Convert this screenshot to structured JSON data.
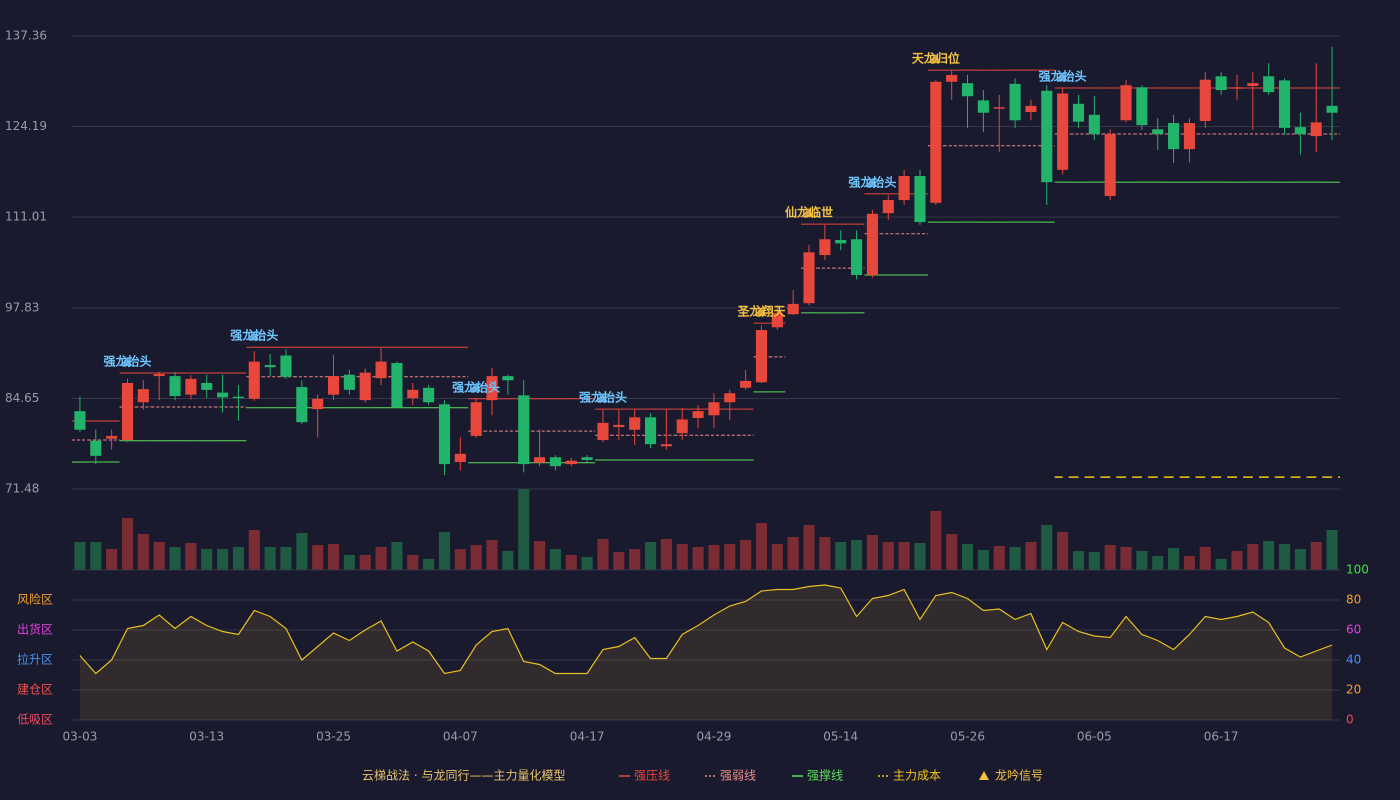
{
  "chart_data": [
    {
      "type": "candlestick",
      "categories": [
        "03-03",
        null,
        null,
        null,
        null,
        null,
        null,
        null,
        "03-13",
        null,
        null,
        null,
        null,
        null,
        null,
        null,
        "03-25",
        null,
        null,
        null,
        null,
        null,
        null,
        null,
        "04-07",
        null,
        null,
        null,
        null,
        null,
        null,
        null,
        "04-17",
        null,
        null,
        null,
        null,
        null,
        null,
        null,
        "04-29",
        null,
        null,
        null,
        null,
        null,
        null,
        null,
        "05-14",
        null,
        null,
        null,
        null,
        null,
        null,
        null,
        "05-26",
        null,
        null,
        null,
        null,
        null,
        null,
        null,
        "06-05",
        null,
        null,
        null,
        null,
        null,
        null,
        null,
        "06-17",
        null,
        null,
        null,
        null,
        null,
        null,
        null
      ],
      "open": [
        82.8,
        78.5,
        78.8,
        78.6,
        84.1,
        87.9,
        87.9,
        85.2,
        86.9,
        85.5,
        84.9,
        84.6,
        89.5,
        90.9,
        86.3,
        83.1,
        85.2,
        88.1,
        84.4,
        87.6,
        89.8,
        84.7,
        86.2,
        83.8,
        75.4,
        79.2,
        84.4,
        87.9,
        85.1,
        75.3,
        76.1,
        75.1,
        76.1,
        78.6,
        80.5,
        80.1,
        81.9,
        77.7,
        79.6,
        81.8,
        82.2,
        84.1,
        86.2,
        87.0,
        95.0,
        96.9,
        98.5,
        105.5,
        107.7,
        107.8,
        102.6,
        111.6,
        113.5,
        117.0,
        113.1,
        130.7,
        130.5,
        128.0,
        126.8,
        130.4,
        126.3,
        129.4,
        117.9,
        127.5,
        125.9,
        114.1,
        125.1,
        129.9,
        123.8,
        124.7,
        120.9,
        125.0,
        131.5,
        129.7,
        130.1,
        131.5,
        130.9,
        124.1,
        122.8,
        127.2
      ],
      "high": [
        84.9,
        80.1,
        80.1,
        87.5,
        87.3,
        88.5,
        88.5,
        88.0,
        88.1,
        88.1,
        86.6,
        91.5,
        91.1,
        91.8,
        87.3,
        85.2,
        91.0,
        88.8,
        89.0,
        92.0,
        90.0,
        86.9,
        86.6,
        84.4,
        79.0,
        84.7,
        89.1,
        88.1,
        87.3,
        80.1,
        76.4,
        76.0,
        76.4,
        83.0,
        83.0,
        83.0,
        82.5,
        83.0,
        83.3,
        83.7,
        85.4,
        85.9,
        88.8,
        95.3,
        98.2,
        100.4,
        107.0,
        109.9,
        109.1,
        109.1,
        112.1,
        114.2,
        117.9,
        117.9,
        131.0,
        132.4,
        131.7,
        129.5,
        128.8,
        131.2,
        128.1,
        130.2,
        129.8,
        128.8,
        128.6,
        123.8,
        131.0,
        130.2,
        125.4,
        125.9,
        125.4,
        132.1,
        132.1,
        131.7,
        132.1,
        133.4,
        131.2,
        126.2,
        133.4,
        135.8
      ],
      "low": [
        79.8,
        75.1,
        77.2,
        78.3,
        83.0,
        84.4,
        84.4,
        84.5,
        84.7,
        82.6,
        81.4,
        84.3,
        87.9,
        87.5,
        80.9,
        79.0,
        84.4,
        85.2,
        84.0,
        86.6,
        83.2,
        83.7,
        83.7,
        73.5,
        74.2,
        78.9,
        82.2,
        85.2,
        73.9,
        74.8,
        74.2,
        74.8,
        75.4,
        78.3,
        78.6,
        77.9,
        77.4,
        77.2,
        78.6,
        80.3,
        80.3,
        81.5,
        85.9,
        86.9,
        94.6,
        96.8,
        98.2,
        104.8,
        106.2,
        102.0,
        102.2,
        110.6,
        112.8,
        109.9,
        112.8,
        128.1,
        124.0,
        123.4,
        120.5,
        124.0,
        125.1,
        112.8,
        117.2,
        124.0,
        122.2,
        113.5,
        124.8,
        123.7,
        120.8,
        118.9,
        119.0,
        124.0,
        128.8,
        128.1,
        123.7,
        128.8,
        123.0,
        120.1,
        120.5,
        122.2
      ],
      "close": [
        80.1,
        76.3,
        79.2,
        86.9,
        86.0,
        88.2,
        85.0,
        87.5,
        85.9,
        84.8,
        84.7,
        90.0,
        89.2,
        87.8,
        81.2,
        84.6,
        87.9,
        85.9,
        88.4,
        90.0,
        83.4,
        85.9,
        84.1,
        75.1,
        76.6,
        84.1,
        87.9,
        87.3,
        75.1,
        76.1,
        74.8,
        75.6,
        75.7,
        81.1,
        80.8,
        81.9,
        78.0,
        78.0,
        81.6,
        82.8,
        84.1,
        85.4,
        87.2,
        94.6,
        97.1,
        98.4,
        105.9,
        107.8,
        107.2,
        102.6,
        111.5,
        113.5,
        117.0,
        110.3,
        130.7,
        131.7,
        128.6,
        126.2,
        127.0,
        125.1,
        127.2,
        116.1,
        129.0,
        124.9,
        123.1,
        123.1,
        130.2,
        124.4,
        123.1,
        120.9,
        124.7,
        131.0,
        129.5,
        129.9,
        130.5,
        129.2,
        124.0,
        123.1,
        124.8,
        126.2
      ],
      "up_color": "#e8473c",
      "down_color": "#22b46a",
      "ylim": [
        71.48,
        137.36
      ],
      "yticks": [
        71.48,
        84.65,
        97.83,
        111.01,
        124.19,
        137.36
      ],
      "grid": true,
      "signals": [
        null,
        null,
        null,
        {
          "label": "强龙抬头",
          "color": "#6ec6ff"
        },
        null,
        null,
        null,
        null,
        null,
        null,
        null,
        {
          "label": "强龙抬头",
          "color": "#6ec6ff"
        },
        null,
        null,
        null,
        null,
        null,
        null,
        null,
        null,
        null,
        null,
        null,
        null,
        null,
        {
          "label": "强龙抬头",
          "color": "#6ec6ff"
        },
        null,
        null,
        null,
        null,
        null,
        null,
        null,
        {
          "label": "强龙抬头",
          "color": "#6ec6ff"
        },
        null,
        null,
        null,
        null,
        null,
        null,
        null,
        null,
        null,
        {
          "label": "圣龙翔天",
          "color": "#f5c242"
        },
        null,
        null,
        {
          "label": "仙龙临世",
          "color": "#f5c242"
        },
        null,
        null,
        null,
        {
          "label": "强龙抬头",
          "color": "#6ec6ff"
        },
        null,
        null,
        null,
        {
          "label": "天龙归位",
          "color": "#f5c242"
        },
        null,
        null,
        null,
        null,
        null,
        null,
        null,
        {
          "label": "强龙抬头",
          "color": "#6ec6ff"
        },
        null,
        null,
        null,
        null,
        null,
        null,
        null,
        null,
        null,
        null,
        null,
        null,
        null,
        null,
        null,
        null,
        null
      ],
      "levels": [
        {
          "name": "强压线",
          "color": "#e8473c",
          "dashed": false,
          "values": [
            81.37,
            81.37,
            81.37,
            88.35,
            88.35,
            88.35,
            88.35,
            88.35,
            88.35,
            88.35,
            88.35,
            92.1,
            92.1,
            92.1,
            92.1,
            92.1,
            92.1,
            92.1,
            92.1,
            92.1,
            92.1,
            92.1,
            92.1,
            92.1,
            92.1,
            84.6,
            84.6,
            84.6,
            84.6,
            84.6,
            84.6,
            84.6,
            84.6,
            83.1,
            83.1,
            83.1,
            83.1,
            83.1,
            83.1,
            83.1,
            83.1,
            83.1,
            83.1,
            95.6,
            95.6,
            null,
            110.0,
            110.0,
            110.0,
            110.0,
            114.4,
            114.4,
            114.4,
            114.4,
            132.4,
            132.4,
            132.4,
            132.4,
            132.4,
            132.4,
            132.4,
            132.4,
            129.8,
            129.8,
            129.8,
            129.8,
            129.8,
            129.8,
            129.8,
            129.8,
            129.8,
            129.8,
            129.8,
            129.8,
            129.8,
            129.8,
            129.8,
            129.8,
            129.8,
            129.8
          ]
        },
        {
          "name": "强弱线",
          "color": "#f08a8a",
          "dashed": true,
          "values": [
            78.6,
            78.6,
            78.6,
            83.4,
            83.4,
            83.4,
            83.4,
            83.4,
            83.4,
            83.4,
            83.4,
            87.8,
            87.8,
            87.8,
            87.8,
            87.8,
            87.8,
            87.8,
            87.8,
            87.8,
            87.8,
            87.8,
            87.8,
            87.8,
            87.8,
            79.9,
            79.9,
            79.9,
            79.9,
            79.9,
            79.9,
            79.9,
            79.9,
            79.3,
            79.3,
            79.3,
            79.3,
            79.3,
            79.3,
            79.3,
            79.3,
            79.3,
            79.3,
            90.7,
            90.7,
            null,
            103.6,
            103.6,
            103.6,
            103.6,
            108.6,
            108.6,
            108.6,
            108.6,
            121.4,
            121.4,
            121.4,
            121.4,
            121.4,
            121.4,
            121.4,
            121.4,
            123.1,
            123.1,
            123.1,
            123.1,
            123.1,
            123.1,
            123.1,
            123.1,
            123.1,
            123.1,
            123.1,
            123.1,
            123.1,
            123.1,
            123.1,
            123.1,
            123.1,
            123.1
          ]
        },
        {
          "name": "强撑线",
          "color": "#5be05b",
          "dashed": false,
          "values": [
            75.4,
            75.4,
            75.4,
            78.5,
            78.5,
            78.5,
            78.5,
            78.5,
            78.5,
            78.5,
            78.5,
            83.3,
            83.3,
            83.3,
            83.3,
            83.3,
            83.3,
            83.3,
            83.3,
            83.3,
            83.3,
            83.3,
            83.3,
            83.3,
            83.3,
            75.3,
            75.3,
            75.3,
            75.3,
            75.3,
            75.3,
            75.3,
            75.3,
            75.7,
            75.7,
            75.7,
            75.7,
            75.7,
            75.7,
            75.7,
            75.7,
            75.7,
            75.7,
            85.6,
            85.6,
            null,
            97.1,
            97.1,
            97.1,
            97.1,
            102.6,
            102.6,
            102.6,
            102.6,
            110.3,
            110.3,
            110.3,
            110.3,
            110.3,
            110.3,
            110.3,
            110.3,
            116.1,
            116.1,
            116.1,
            116.1,
            116.1,
            116.1,
            116.1,
            116.1,
            116.1,
            116.1,
            116.1,
            116.1,
            116.1,
            116.1,
            116.1,
            116.1,
            116.1,
            116.1
          ]
        },
        {
          "name": "主力成本",
          "color": "#f5c518",
          "dashed": true,
          "values": [
            null,
            null,
            null,
            null,
            null,
            null,
            null,
            null,
            null,
            null,
            null,
            null,
            null,
            null,
            null,
            null,
            null,
            null,
            null,
            null,
            null,
            null,
            null,
            null,
            null,
            null,
            null,
            null,
            null,
            null,
            null,
            null,
            null,
            null,
            null,
            null,
            null,
            null,
            null,
            null,
            null,
            null,
            null,
            null,
            null,
            null,
            null,
            null,
            null,
            null,
            null,
            null,
            null,
            null,
            null,
            null,
            null,
            null,
            null,
            null,
            null,
            null,
            73.2,
            73.2,
            73.2,
            73.2,
            73.2,
            73.2,
            73.2,
            73.2,
            73.2,
            73.2,
            73.2,
            73.2,
            73.2,
            73.2,
            73.2,
            73.2,
            73.2,
            73.2
          ]
        }
      ],
      "legend_title": "云梯战法 · 与龙同行——主力量化模型",
      "signal_legend": "龙吟信号",
      "signal_legend_color": "#f5c242"
    },
    {
      "type": "volume",
      "values": [
        28,
        28,
        21,
        52,
        36,
        28,
        23,
        27,
        21,
        21,
        23,
        40,
        23,
        23,
        37,
        25,
        26,
        15,
        15,
        23,
        28,
        15,
        11,
        38,
        21,
        25,
        30,
        19,
        81,
        29,
        21,
        15,
        13,
        31,
        18,
        21,
        28,
        31,
        26,
        23,
        25,
        26,
        30,
        47,
        26,
        33,
        45,
        33,
        28,
        30,
        35,
        28,
        28,
        27,
        59,
        36,
        26,
        20,
        24,
        23,
        28,
        45,
        38,
        19,
        18,
        25,
        23,
        19,
        14,
        22,
        14,
        23,
        11,
        19,
        26,
        29,
        26,
        21,
        28,
        40
      ],
      "up_color": "#7a2c34",
      "down_color": "#1f5a42"
    },
    {
      "type": "line",
      "values": [
        43,
        31,
        40,
        61,
        63,
        70,
        61,
        69,
        63,
        59,
        57,
        73,
        69,
        61,
        40,
        49,
        58,
        53,
        60,
        66,
        46,
        52,
        46,
        31,
        33,
        50,
        59,
        61,
        39,
        37,
        31,
        31,
        31,
        47,
        49,
        55,
        41,
        41,
        57,
        63,
        70,
        76,
        79,
        86,
        87,
        87,
        89,
        90,
        88,
        69,
        81,
        83,
        87,
        67,
        83,
        85,
        81,
        73,
        74,
        67,
        71,
        47,
        65,
        59,
        56,
        55,
        69,
        57,
        53,
        47,
        57,
        69,
        67,
        69,
        72,
        65,
        48,
        42,
        46,
        50
      ],
      "color": "#e8c020",
      "ylim": [
        0,
        100
      ],
      "yticks": [
        0,
        20,
        40,
        60,
        80,
        100
      ],
      "ytick_colors": [
        "#f04848",
        "#f0a030",
        "#4a90f0",
        "#e040e0",
        "#f0a030",
        "#40e040"
      ],
      "zones": [
        {
          "label": "低吸区",
          "value": 0,
          "color": "#f04860"
        },
        {
          "label": "建仓区",
          "value": 20,
          "color": "#f05050"
        },
        {
          "label": "拉升区",
          "value": 40,
          "color": "#4a90f0"
        },
        {
          "label": "出货区",
          "value": 60,
          "color": "#e040e0"
        },
        {
          "label": "风险区",
          "value": 80,
          "color": "#f0a030"
        }
      ]
    }
  ]
}
